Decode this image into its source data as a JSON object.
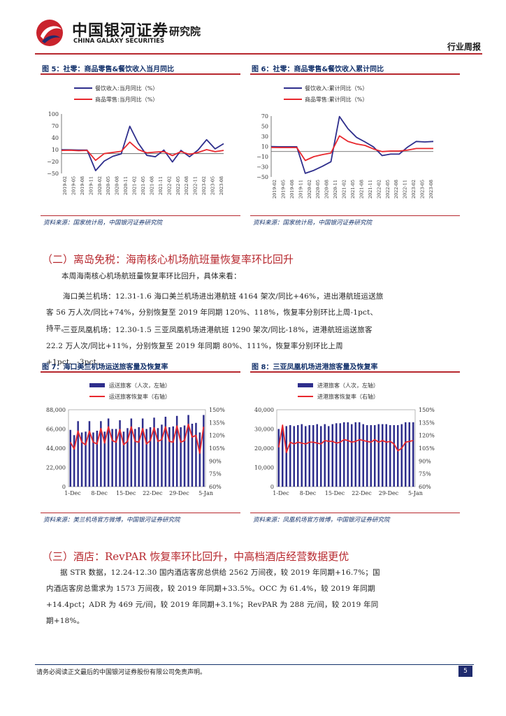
{
  "header": {
    "brand_cn": "中国银河证券",
    "dept": "研究院",
    "brand_en": "CHINA GALAXY SECURITIES",
    "report_type": "行业周报"
  },
  "colors": {
    "navy": "#2e2e8c",
    "red": "#e8282e",
    "rule": "#b7282e",
    "title": "#14326b"
  },
  "charts": [
    {
      "title": "图 5：社零：商品零售&餐饮收入当月同比",
      "source": "资料来源：国家统计局，中国银河证券研究院",
      "legend": [
        "餐饮收入:当月同比（%）",
        "商品零售:当月同比（%）"
      ],
      "yticks": [
        "100",
        "70",
        "40",
        "10",
        "−20",
        "−50"
      ],
      "xticks": [
        "2019-02",
        "2019-05",
        "2019-08",
        "2019-11",
        "2020-02",
        "2020-05",
        "2020-08",
        "2020-11",
        "2021-02",
        "2021-05",
        "2021-08",
        "2021-11",
        "2022-02",
        "2022-05",
        "2022-08",
        "2022-11",
        "2023-02",
        "2023-05",
        "2023-08"
      ]
    },
    {
      "title": "图 6：社零：商品零售&餐饮收入累计同比",
      "source": "资料来源：国家统计局，中国银河证券研究院",
      "legend": [
        "餐饮收入:累计同比（%）",
        "商品零售:累计同比（%）"
      ],
      "yticks": [
        "70",
        "50",
        "30",
        "10",
        "−10",
        "−30",
        "−50"
      ],
      "xticks": [
        "2019-02",
        "2019-05",
        "2019-08",
        "2019-11",
        "2020-02",
        "2020-05",
        "2020-08",
        "2020-11",
        "2021-02",
        "2021-05",
        "2021-08",
        "2021-11",
        "2022-02",
        "2022-05",
        "2022-08",
        "2022-11",
        "2023-02",
        "2023-05",
        "2023-08"
      ]
    },
    {
      "title": "图 7：海口美兰机场运送旅客量及恢复率",
      "source": "资料来源：美兰机场官方微博，中国银河证券研究院",
      "legend": [
        "运送旅客（人次，左轴）",
        "运送旅客恢复率（右轴）"
      ],
      "yticks_left": [
        "88,000",
        "66,000",
        "44,000",
        "22,000",
        "0"
      ],
      "yticks_right": [
        "150%",
        "135%",
        "120%",
        "105%",
        "90%",
        "75%",
        "60%"
      ],
      "xticks": [
        "1-Dec",
        "8-Dec",
        "15-Dec",
        "22-Dec",
        "29-Dec",
        "5-Jan"
      ]
    },
    {
      "title": "图 8：三亚凤凰机场进港旅客量及恢复率",
      "source": "资料来源：凤凰机场官方微博，中国银河证券研究院",
      "legend": [
        "进港旅客（人次，左轴）",
        "进港旅客恢复率（右轴）"
      ],
      "yticks_left": [
        "40,000",
        "30,000",
        "20,000",
        "10,000",
        "0"
      ],
      "yticks_right": [
        "150%",
        "135%",
        "120%",
        "105%",
        "90%",
        "75%",
        "60%"
      ],
      "xticks": [
        "1-Dec",
        "8-Dec",
        "15-Dec",
        "22-Dec",
        "29-Dec",
        "5-Jan"
      ]
    }
  ],
  "chart_data": [
    {
      "type": "line",
      "title": "图 5：社零：商品零售&餐饮收入当月同比",
      "ylim": [
        -50,
        100
      ],
      "series": [
        {
          "name": "餐饮收入:当月同比（%）",
          "color": "#2e2e8c",
          "x": [
            "2019-02",
            "2019-05",
            "2019-08",
            "2019-11",
            "2020-02",
            "2020-05",
            "2020-08",
            "2020-11",
            "2021-02",
            "2021-05",
            "2021-08",
            "2021-11",
            "2022-02",
            "2022-05",
            "2022-08",
            "2022-11",
            "2023-02",
            "2023-05",
            "2023-08",
            "2023-11"
          ],
          "values": [
            9.7,
            9.4,
            9.0,
            9.0,
            -43,
            -19,
            -7,
            -0.6,
            69,
            26,
            -4.5,
            -8,
            9,
            -21,
            8,
            -8,
            9.2,
            35,
            12,
            25
          ]
        },
        {
          "name": "商品零售:当月同比（%）",
          "color": "#e8282e",
          "x": [
            "2019-02",
            "2019-05",
            "2019-08",
            "2019-11",
            "2020-02",
            "2020-05",
            "2020-08",
            "2020-11",
            "2021-02",
            "2021-05",
            "2021-08",
            "2021-11",
            "2022-02",
            "2022-05",
            "2022-08",
            "2022-11",
            "2023-02",
            "2023-05",
            "2023-08",
            "2023-11"
          ],
          "values": [
            8.1,
            8.6,
            7.3,
            8,
            -17,
            0,
            3,
            5.8,
            29,
            10,
            2,
            3.8,
            5,
            -5,
            5,
            -2,
            3,
            10,
            4.8,
            8
          ]
        }
      ]
    },
    {
      "type": "line",
      "title": "图 6：社零：商品零售&餐饮收入累计同比",
      "ylim": [
        -50,
        70
      ],
      "series": [
        {
          "name": "餐饮收入:累计同比（%）",
          "color": "#2e2e8c",
          "x": [
            "2019-02",
            "2019-05",
            "2019-08",
            "2019-11",
            "2020-02",
            "2020-05",
            "2020-08",
            "2020-11",
            "2021-02",
            "2021-05",
            "2021-08",
            "2021-11",
            "2022-02",
            "2022-05",
            "2022-08",
            "2022-11",
            "2023-02",
            "2023-05",
            "2023-08",
            "2023-11"
          ],
          "values": [
            9.7,
            9.5,
            9.4,
            9.4,
            -43,
            -37,
            -29,
            -20,
            69,
            45,
            28,
            19,
            9,
            -8,
            -5,
            -5,
            9,
            20,
            19,
            20
          ]
        },
        {
          "name": "商品零售:累计同比（%）",
          "color": "#e8282e",
          "x": [
            "2019-02",
            "2019-05",
            "2019-08",
            "2019-11",
            "2020-02",
            "2020-05",
            "2020-08",
            "2020-11",
            "2021-02",
            "2021-05",
            "2021-08",
            "2021-11",
            "2022-02",
            "2022-05",
            "2022-08",
            "2022-11",
            "2023-02",
            "2023-05",
            "2023-08",
            "2023-11"
          ],
          "values": [
            8.1,
            8.0,
            8.0,
            8.0,
            -17.6,
            -10,
            -6,
            -3,
            31,
            20,
            15,
            12,
            5,
            0,
            1,
            1,
            3,
            6,
            6,
            6
          ]
        }
      ]
    },
    {
      "type": "bar",
      "title": "图 7：海口美兰机场运送旅客量及恢复率",
      "ylim": [
        0,
        88000
      ],
      "y2lim": [
        0.6,
        1.5
      ],
      "series": [
        {
          "name": "运送旅客（人次，左轴）",
          "color": "#2e2e8c",
          "values": [
            65000,
            59000,
            75000,
            62000,
            63000,
            75000,
            62000,
            64000,
            75000,
            63000,
            78000,
            66000,
            66000,
            76000,
            63000,
            67000,
            78000,
            66000,
            68000,
            78000,
            66000,
            68000,
            79000,
            67000,
            71000,
            80000,
            68000,
            69000,
            81000,
            68000,
            70000,
            82000,
            72000,
            73000,
            62000,
            82000
          ]
        },
        {
          "name": "运送旅客恢复率（右轴）",
          "color": "#e8282e",
          "values": [
            1.12,
            1.04,
            1.25,
            1.12,
            1.09,
            1.25,
            1.12,
            1.1,
            1.28,
            1.11,
            1.3,
            1.14,
            1.12,
            1.27,
            1.09,
            1.13,
            1.3,
            1.13,
            1.12,
            1.28,
            1.1,
            1.14,
            1.29,
            1.13,
            1.15,
            1.3,
            1.13,
            1.12,
            1.31,
            1.12,
            1.14,
            1.33,
            1.18,
            1.2,
            0.99,
            1.3
          ]
        }
      ]
    },
    {
      "type": "bar",
      "title": "图 8：三亚凤凰机场进港旅客量及恢复率",
      "ylim": [
        0,
        40000
      ],
      "y2lim": [
        0.6,
        1.5
      ],
      "series": [
        {
          "name": "进港旅客（人次，左轴）",
          "color": "#2e2e8c",
          "values": [
            30000,
            31000,
            31500,
            32000,
            31500,
            32000,
            32500,
            31500,
            32000,
            32000,
            32500,
            31500,
            32500,
            31500,
            32500,
            33000,
            33000,
            33500,
            33500,
            32500,
            33500,
            33500,
            32500,
            32000,
            32000,
            32000,
            32500,
            32500,
            32500,
            32000,
            32000,
            32000,
            32500,
            33500,
            33500,
            33500
          ]
        },
        {
          "name": "进港旅客恢复率（右轴）",
          "color": "#e8282e",
          "values": [
            1.06,
            1.32,
            1.0,
            1.12,
            1.1,
            1.12,
            1.11,
            1.1,
            1.12,
            1.12,
            1.11,
            1.1,
            1.14,
            1.13,
            1.13,
            1.11,
            1.12,
            1.15,
            1.14,
            1.12,
            1.13,
            1.15,
            1.14,
            1.13,
            1.12,
            1.15,
            1.12,
            1.14,
            1.12,
            1.13,
            1.1,
            1.02,
            1.05,
            1.12,
            1.13,
            1.14
          ]
        }
      ]
    }
  ],
  "sections": [
    {
      "heading": "（二）离岛免税：海南核心机场航班量恢复率环比回升",
      "paragraphs": [
        "本周海南核心机场航班量恢复率环比回升，具体来看：",
        "海口美兰机场：12.31-1.6 海口美兰机场进出港航班 4164 架次/同比+46%，进出港航班运送旅客 56 万人次/同比+74%，分别恢复至 2019 年同期 120%、118%，恢复率分别环比上周-1pct、持平。",
        "三亚凤凰机场：12.30-1.5 三亚凤凰机场进港航班 1290 架次/同比-18%，进港航班运送旅客 22.2 万人次/同比+11%，分别恢复至 2019 年同期 80%、111%，恢复率分别环比上周+1pct、-3pct。"
      ]
    },
    {
      "heading": "（三）酒店：RevPAR 恢复率环比回升，中高档酒店经营数据更优",
      "paragraphs": [
        "据 STR 数据，12.24-12.30 国内酒店客房总供给 2562 万间夜，较 2019 年同期+16.7%；国内酒店客房总需求为 1573 万间夜，较 2019 年同期+33.5%。OCC 为 61.4%，较 2019 年同期+14.4pct；ADR 为 469 元/间，较 2019 年同期+3.1%；RevPAR 为 288 元/间，较 2019 年同期+18%。"
      ]
    }
  ],
  "footer": {
    "disclaimer": "请务必阅读正文最后的中国银河证券股份有限公司免责声明。",
    "page": "5"
  }
}
